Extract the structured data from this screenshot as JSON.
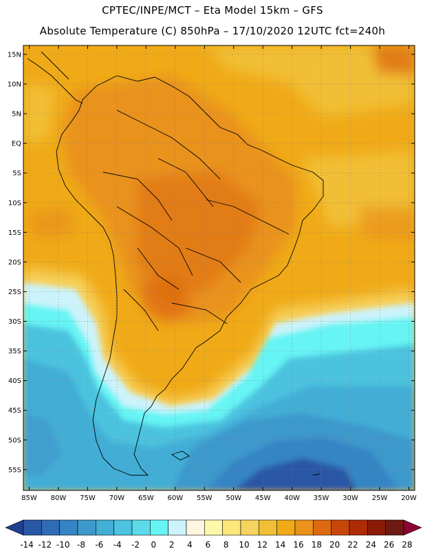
{
  "header": {
    "line1": "CPTEC/INPE/MCT –   Eta Model 15km – GFS",
    "line2": "Absolute Temperature (C) 850hPa – 17/10/2020 12UTC fct=240h"
  },
  "map": {
    "lat_labels": [
      "15N",
      "10N",
      "5N",
      "EQ",
      "5S",
      "10S",
      "15S",
      "20S",
      "25S",
      "30S",
      "35S",
      "40S",
      "45S",
      "50S",
      "55S"
    ],
    "lon_labels": [
      "85W",
      "80W",
      "75W",
      "70W",
      "65W",
      "60W",
      "55W",
      "50W",
      "45W",
      "40W",
      "35W",
      "30W",
      "25W",
      "20W"
    ]
  },
  "colorbar": {
    "levels": [
      "-14",
      "-12",
      "-10",
      "-8",
      "-6",
      "-4",
      "-2",
      "0",
      "2",
      "4",
      "6",
      "8",
      "10",
      "12",
      "14",
      "16",
      "18",
      "20",
      "22",
      "24",
      "26",
      "28"
    ],
    "colors": [
      "#1f3f8f",
      "#2a56a6",
      "#2f6cb5",
      "#3584c4",
      "#3d98cc",
      "#43aed6",
      "#4cc3df",
      "#5ddaea",
      "#66f4f4",
      "#ccf3fb",
      "#fdf6e0",
      "#fef8a8",
      "#fde67a",
      "#f6d25e",
      "#f1bf35",
      "#f0aa17",
      "#e9921c",
      "#dd6a0e",
      "#c9460a",
      "#ad2b06",
      "#8c1a06",
      "#6d1a12",
      "#8a0531"
    ]
  },
  "colors": {
    "frame": "#000000",
    "grid": "#7f7f7f",
    "land_outline": "#000000"
  }
}
